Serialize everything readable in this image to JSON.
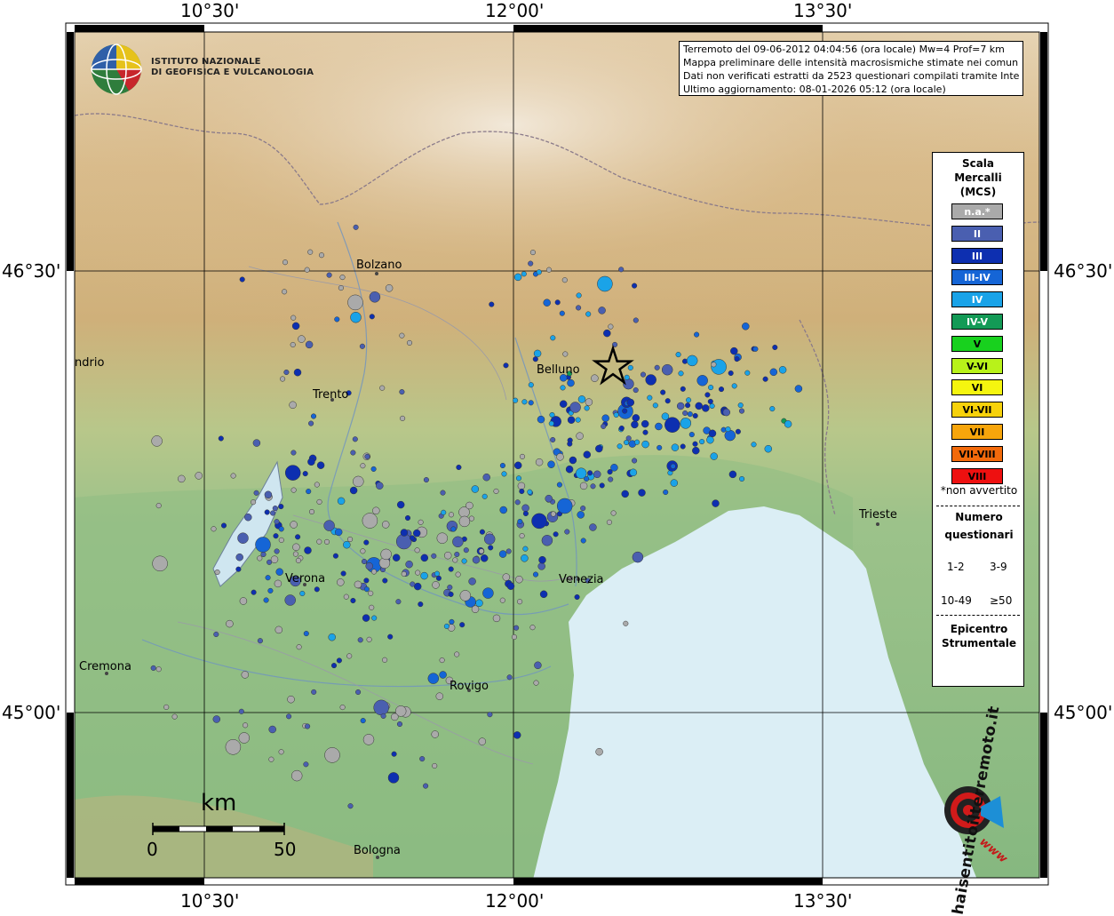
{
  "frame": {
    "lon_labels": [
      "10°30'",
      "12°00'",
      "13°30'"
    ],
    "lat_labels": [
      "46°30'",
      "45°00'"
    ]
  },
  "info": {
    "line1": "Terremoto del 09-06-2012 04:04:56 (ora locale) Mw=4 Prof=7 km",
    "line2": "Mappa preliminare delle intensità macrosismiche stimate nei comuni",
    "line3": "Dati non verificati estratti da 2523 questionari compilati tramite Internet.",
    "line4": "Ultimo aggiornamento: 08-01-2026 05:12 (ora locale)"
  },
  "logo": {
    "line1": "ISTITUTO NAZIONALE",
    "line2": "DI GEOFISICA E VULCANOLOGIA"
  },
  "cities": [
    {
      "name": "Bolzano"
    },
    {
      "name": "Trento"
    },
    {
      "name": "Belluno"
    },
    {
      "name": "Verona"
    },
    {
      "name": "Venezia"
    },
    {
      "name": "Trieste"
    },
    {
      "name": "Rovigo"
    },
    {
      "name": "Cremona"
    },
    {
      "name": "Bologna"
    },
    {
      "name": "ndrio"
    }
  ],
  "legend": {
    "title": [
      "Scala",
      "Mercalli",
      "(MCS)"
    ],
    "scale": [
      {
        "label": "n.a.*",
        "color": "#aaaaaa",
        "text_color": "#ffffff"
      },
      {
        "label": "II",
        "color": "#4a5fb0",
        "text_color": "#ffffff"
      },
      {
        "label": "III",
        "color": "#0d2fb0",
        "text_color": "#ffffff"
      },
      {
        "label": "III-IV",
        "color": "#1565d6",
        "text_color": "#ffffff"
      },
      {
        "label": "IV",
        "color": "#1aa3e8",
        "text_color": "#ffffff"
      },
      {
        "label": "IV-V",
        "color": "#139a56",
        "text_color": "#ffffff"
      },
      {
        "label": "V",
        "color": "#18d11e",
        "text_color": "#000000"
      },
      {
        "label": "V-VI",
        "color": "#b8f21a",
        "text_color": "#000000"
      },
      {
        "label": "VI",
        "color": "#f5f50f",
        "text_color": "#000000"
      },
      {
        "label": "VI-VII",
        "color": "#f7d20b",
        "text_color": "#000000"
      },
      {
        "label": "VII",
        "color": "#f7a50b",
        "text_color": "#000000"
      },
      {
        "label": "VII-VIII",
        "color": "#f26a0b",
        "text_color": "#000000"
      },
      {
        "label": "VIII",
        "color": "#ee1010",
        "text_color": "#000000"
      }
    ],
    "not_felt": "*non avvertito",
    "count_title": [
      "Numero",
      "questionari"
    ],
    "count_sizes": [
      "1-2",
      "3-9",
      "10-49",
      "≥50"
    ],
    "epicenter_title": [
      "Epicentro",
      "Strumentale"
    ]
  },
  "scalebar": {
    "unit": "km",
    "start": "0",
    "end": "50"
  },
  "hst": {
    "text": "haisentitoilterremoto.it",
    "url": "www"
  }
}
